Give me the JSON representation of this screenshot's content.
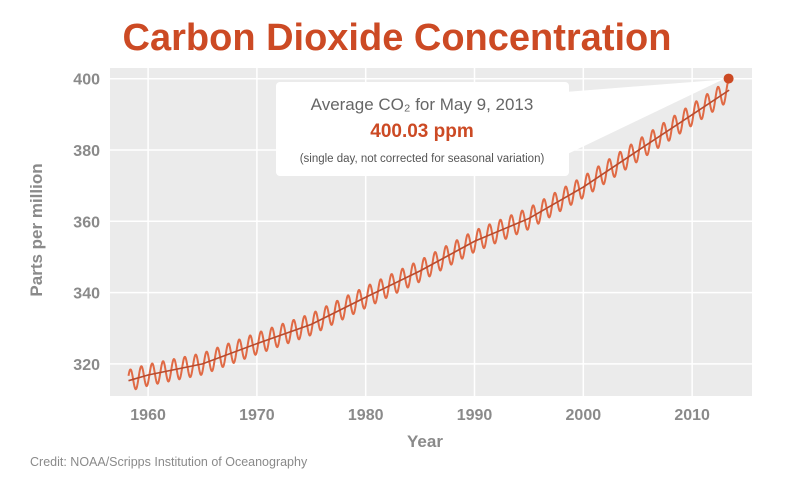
{
  "colors": {
    "accent": "#cc4a24",
    "line": "#e06a45",
    "trend": "#b94a2c",
    "plot_bg": "#ebebeb",
    "grid": "#ffffff",
    "text_gray": "#8a8a8a"
  },
  "chart_data": {
    "type": "line",
    "title": "Carbon Dioxide Concentration",
    "xlabel": "Year",
    "ylabel": "Parts per million",
    "xlim": [
      1956.5,
      2015.5
    ],
    "ylim": [
      311,
      403
    ],
    "x_ticks": [
      1960,
      1970,
      1980,
      1990,
      2000,
      2010
    ],
    "y_ticks": [
      320,
      340,
      360,
      380,
      400
    ],
    "grid": true,
    "series": [
      {
        "kind": "monthly",
        "seasonal_amplitude_ppm": 3,
        "x": [
          1958.2,
          1960,
          1965,
          1970,
          1975,
          1980,
          1985,
          1990,
          1995,
          2000,
          2005,
          2010,
          2013.4
        ],
        "values": [
          315.3,
          316.9,
          320.0,
          325.7,
          331.1,
          338.7,
          346.1,
          354.4,
          360.8,
          369.6,
          379.8,
          389.9,
          396.8
        ]
      },
      {
        "kind": "trend",
        "x": [
          1958.2,
          1960,
          1965,
          1970,
          1975,
          1980,
          1985,
          1990,
          1995,
          2000,
          2005,
          2010,
          2013.4
        ],
        "values": [
          315.3,
          316.9,
          320.0,
          325.7,
          331.1,
          338.7,
          346.1,
          354.4,
          360.8,
          369.6,
          379.8,
          389.9,
          396.8
        ]
      }
    ],
    "highlight_point": {
      "x": 2013.35,
      "y": 400.03
    },
    "callout": {
      "line1": "Average CO₂ for May 9, 2013",
      "value": "400.03 ppm",
      "note": "(single day, not corrected for seasonal variation)"
    }
  },
  "credit": "Credit: NOAA/Scripps Institution of Oceanography"
}
